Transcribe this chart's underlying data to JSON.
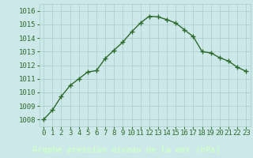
{
  "x": [
    0,
    1,
    2,
    3,
    4,
    5,
    6,
    7,
    8,
    9,
    10,
    11,
    12,
    13,
    14,
    15,
    16,
    17,
    18,
    19,
    20,
    21,
    22,
    23
  ],
  "y": [
    1008.0,
    1008.7,
    1009.7,
    1010.5,
    1011.0,
    1011.5,
    1011.6,
    1012.5,
    1013.1,
    1013.7,
    1014.45,
    1015.1,
    1015.6,
    1015.55,
    1015.35,
    1015.1,
    1014.6,
    1014.1,
    1013.0,
    1012.9,
    1012.55,
    1012.3,
    1011.85,
    1011.55
  ],
  "line_color": "#2d6a2d",
  "marker_color": "#2d6a2d",
  "bg_color": "#cce8e8",
  "grid_color": "#aacccc",
  "bottom_bar_color": "#006600",
  "xlabel": "Graphe pression niveau de la mer (hPa)",
  "xlabel_color": "#ccffcc",
  "ylim_min": 1007.5,
  "ylim_max": 1016.5,
  "yticks": [
    1008,
    1009,
    1010,
    1011,
    1012,
    1013,
    1014,
    1015,
    1016
  ],
  "xticks": [
    0,
    1,
    2,
    3,
    4,
    5,
    6,
    7,
    8,
    9,
    10,
    11,
    12,
    13,
    14,
    15,
    16,
    17,
    18,
    19,
    20,
    21,
    22,
    23
  ],
  "tick_label_color": "#2d6a2d",
  "tick_label_fontsize": 6.5,
  "xlabel_fontsize": 7.5
}
